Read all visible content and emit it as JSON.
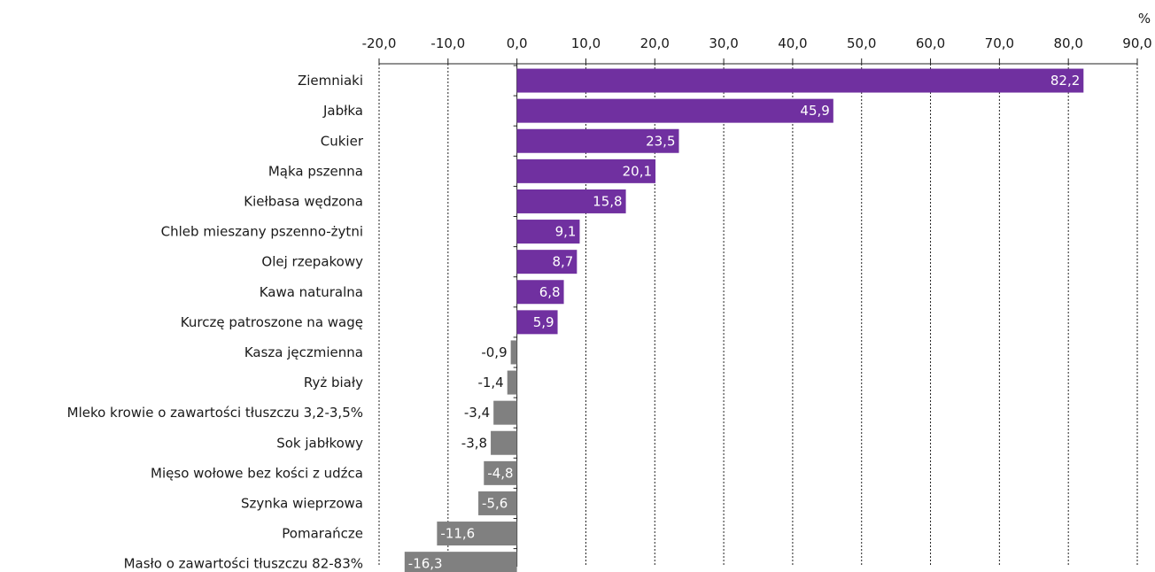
{
  "chart_data": {
    "type": "bar",
    "orientation": "horizontal",
    "unit": "%",
    "xlim": [
      -20,
      90
    ],
    "ticks": [
      -20,
      -10,
      0,
      10,
      20,
      30,
      40,
      50,
      60,
      70,
      80,
      90
    ],
    "tick_labels": [
      "-20,0",
      "-10,0",
      "0,0",
      "10,0",
      "20,0",
      "30,0",
      "40,0",
      "50,0",
      "60,0",
      "70,0",
      "80,0",
      "90,0"
    ],
    "grid": true,
    "axis_position": "top",
    "colors": {
      "positive": "#7030a0",
      "negative": "#808080"
    },
    "categories": [
      "Ziemniaki",
      "Jabłka",
      "Cukier",
      "Mąka pszenna",
      "Kiełbasa wędzona",
      "Chleb mieszany pszenno-żytni",
      "Olej rzepakowy",
      "Kawa naturalna",
      "Kurczę patroszone na wagę",
      "Kasza jęczmienna",
      "Ryż biały",
      "Mleko krowie o zawartości tłuszczu 3,2-3,5%",
      "Sok jabłkowy",
      "Mięso wołowe bez kości z udźca",
      "Szynka wieprzowa",
      "Pomarańcze",
      "Masło o zawartości tłuszczu 82-83%"
    ],
    "values": [
      82.2,
      45.9,
      23.5,
      20.1,
      15.8,
      9.1,
      8.7,
      6.8,
      5.9,
      -0.9,
      -1.4,
      -3.4,
      -3.8,
      -4.8,
      -5.6,
      -11.6,
      -16.3
    ],
    "value_labels": [
      "82,2",
      "45,9",
      "23,5",
      "20,1",
      "15,8",
      "9,1",
      "8,7",
      "6,8",
      "5,9",
      "-0,9",
      "-1,4",
      "-3,4",
      "-3,8",
      "-4,8",
      "-5,6",
      "-11,6",
      "-16,3"
    ]
  }
}
